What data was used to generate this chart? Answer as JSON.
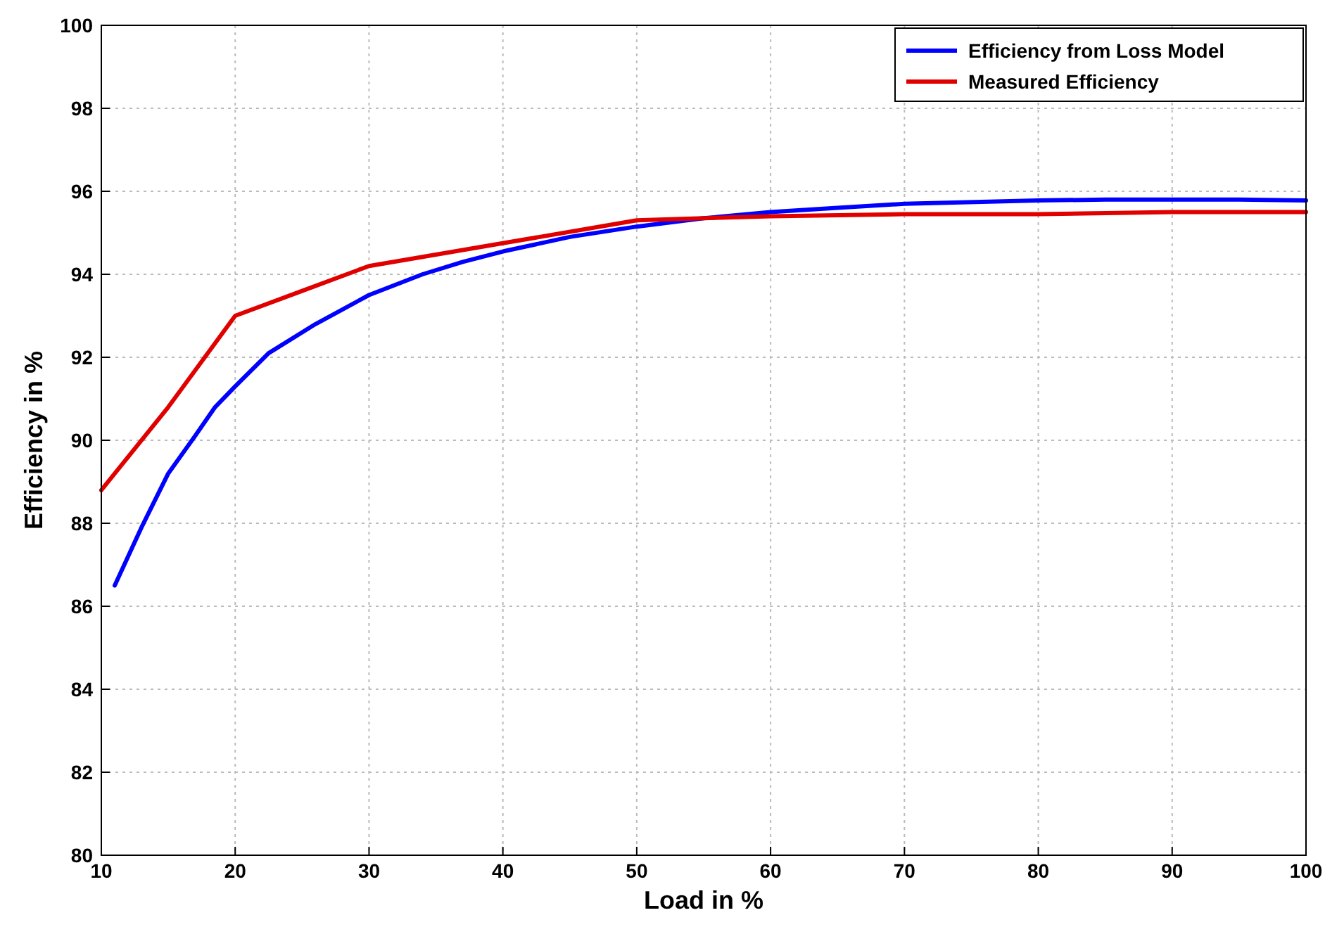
{
  "chart_data": {
    "type": "line",
    "xlabel": "Load in %",
    "ylabel": "Efficiency in %",
    "xlim": [
      10,
      100
    ],
    "xticks": [
      10,
      20,
      30,
      40,
      50,
      60,
      70,
      80,
      90,
      100
    ],
    "ylim": [
      80,
      100
    ],
    "yticks": [
      80,
      82,
      84,
      86,
      88,
      90,
      92,
      94,
      96,
      98,
      100
    ],
    "grid": true,
    "legend": "top right",
    "line_style": "solid",
    "marker": "none",
    "series": [
      {
        "name": "Efficiency from Loss Model",
        "color": "#0000ff",
        "x": [
          11,
          13,
          15,
          17,
          18.5,
          20,
          22.5,
          26,
          30,
          34,
          37,
          40,
          45,
          50,
          55,
          60,
          65,
          70,
          80,
          85,
          90,
          95,
          100
        ],
        "values": [
          86.5,
          87.9,
          89.2,
          90.1,
          90.8,
          91.3,
          92.1,
          92.8,
          93.5,
          94.0,
          94.3,
          94.55,
          94.9,
          95.15,
          95.35,
          95.5,
          95.6,
          95.7,
          95.78,
          95.8,
          95.8,
          95.8,
          95.78
        ]
      },
      {
        "name": "Measured Efficiency",
        "color": "#e00000",
        "x": [
          10,
          15,
          20,
          25,
          30,
          40,
          50,
          55,
          60,
          70,
          80,
          90,
          100
        ],
        "values": [
          88.8,
          90.8,
          93.0,
          93.6,
          94.2,
          94.75,
          95.3,
          95.35,
          95.4,
          95.45,
          95.45,
          95.5,
          95.5
        ]
      }
    ]
  }
}
